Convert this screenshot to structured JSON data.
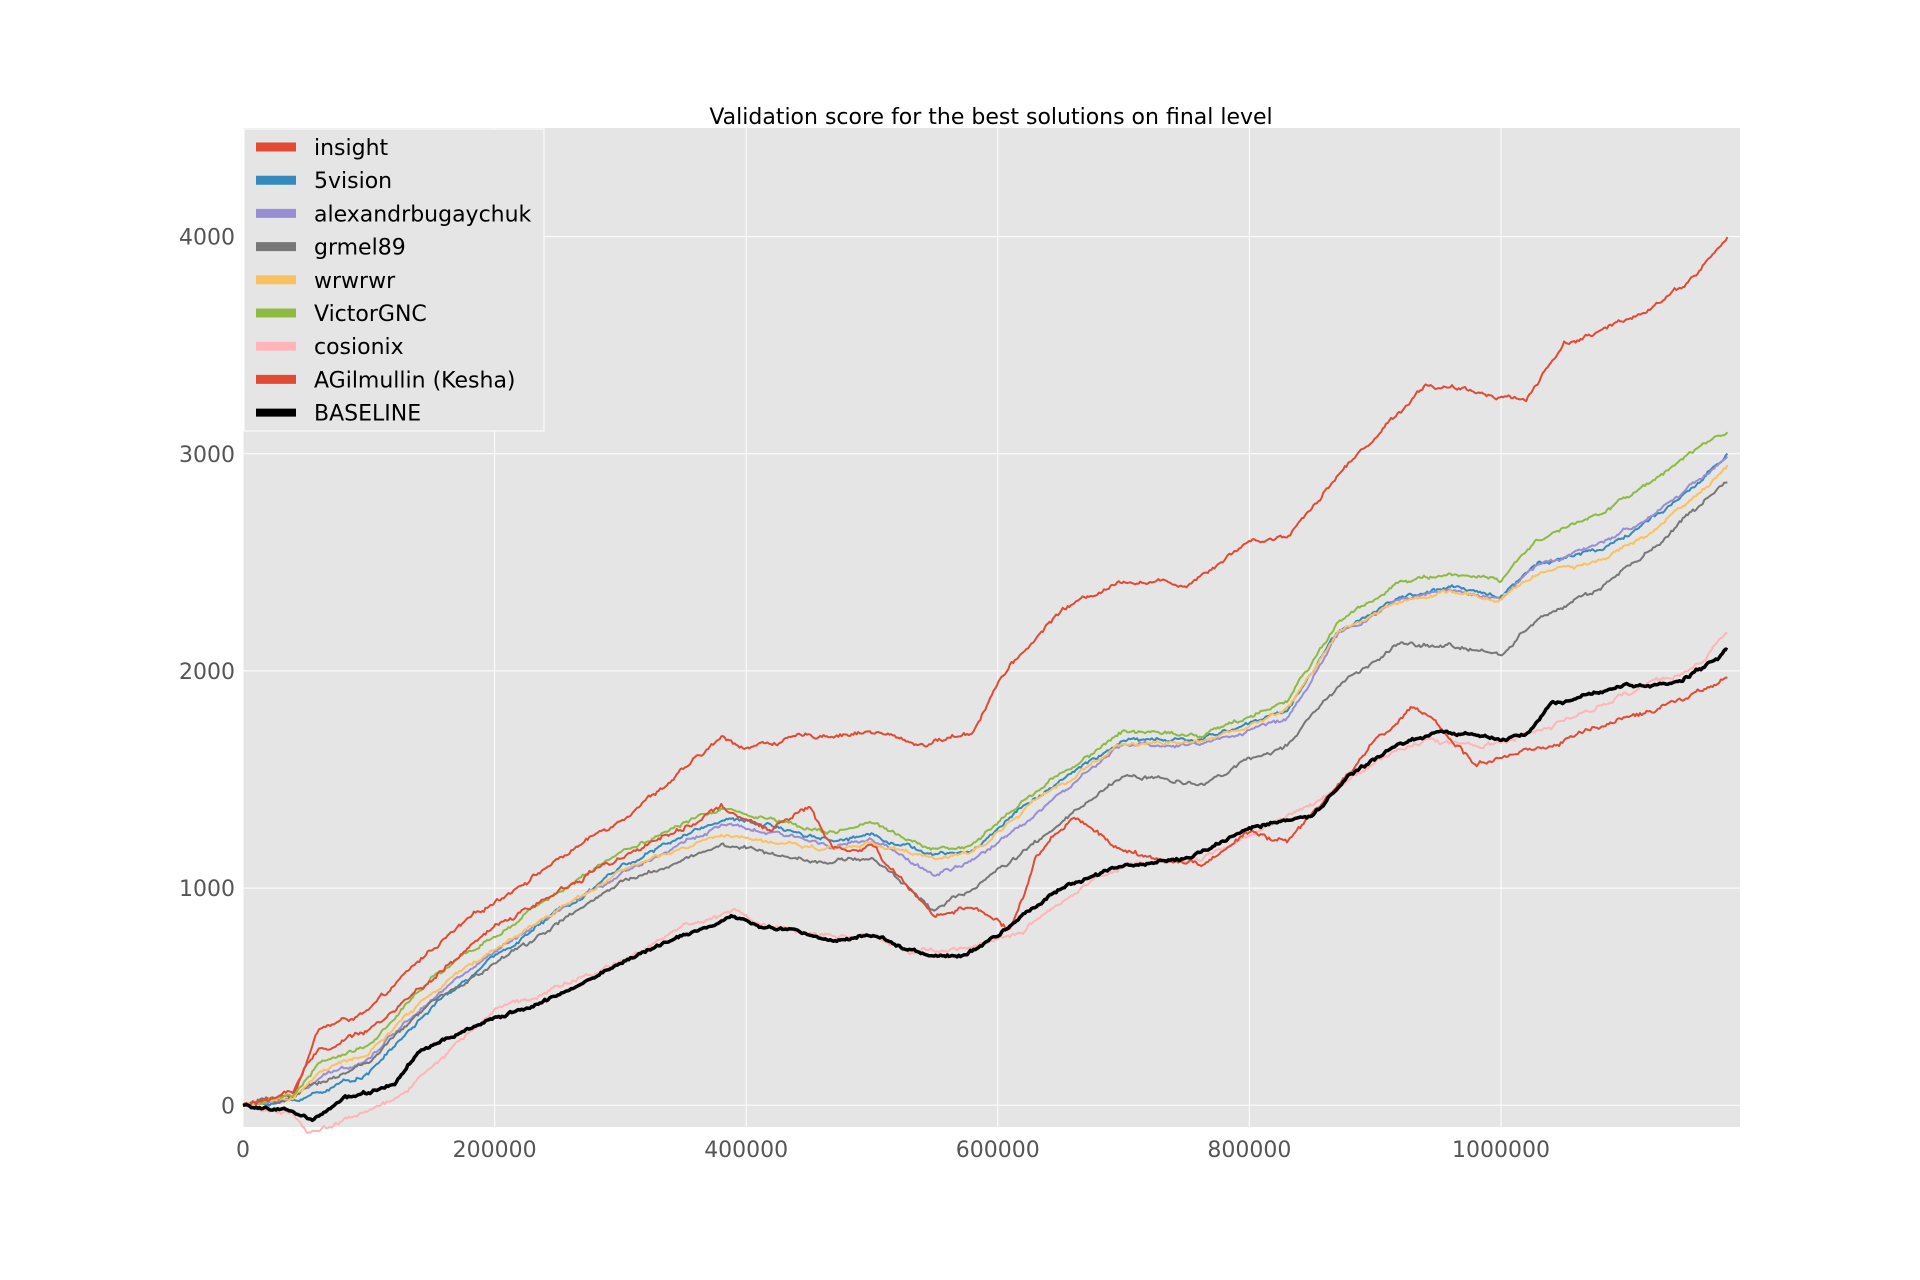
{
  "chart_data": {
    "type": "line",
    "title": "Validation score for the best solutions on final level",
    "xlabel": "",
    "ylabel": "",
    "xlim": [
      0,
      1190000
    ],
    "ylim": [
      -100,
      4500
    ],
    "xticks": [
      0,
      200000,
      400000,
      600000,
      800000,
      1000000
    ],
    "xtick_labels": [
      "0",
      "200000",
      "400000",
      "600000",
      "800000",
      "1000000"
    ],
    "yticks": [
      0,
      1000,
      2000,
      3000,
      4000
    ],
    "ytick_labels": [
      "0",
      "1000",
      "2000",
      "3000",
      "4000"
    ],
    "grid": true,
    "legend_position": "top-left",
    "background": "#e5e5e5",
    "series": [
      {
        "name": "insight",
        "color": "#e24a33",
        "width": 2,
        "noise": 14,
        "x": [
          0,
          40000,
          60000,
          100000,
          150000,
          200000,
          300000,
          350000,
          380000,
          400000,
          450000,
          500000,
          540000,
          580000,
          600000,
          650000,
          700000,
          750000,
          800000,
          830000,
          870000,
          900000,
          940000,
          970000,
          1000000,
          1020000,
          1050000,
          1080000,
          1120000,
          1150000,
          1180000
        ],
        "y": [
          0,
          50,
          350,
          430,
          720,
          940,
          1320,
          1540,
          1690,
          1650,
          1700,
          1720,
          1660,
          1720,
          1950,
          2280,
          2420,
          2400,
          2600,
          2620,
          2900,
          3080,
          3320,
          3290,
          3270,
          3250,
          3510,
          3560,
          3680,
          3800,
          3990
        ]
      },
      {
        "name": "5vision",
        "color": "#348abd",
        "width": 2,
        "noise": 12,
        "x": [
          0,
          40000,
          60000,
          100000,
          150000,
          200000,
          300000,
          380000,
          420000,
          470000,
          500000,
          550000,
          580000,
          620000,
          700000,
          760000,
          800000,
          830000,
          870000,
          920000,
          960000,
          1000000,
          1030000,
          1080000,
          1120000,
          1150000,
          1180000
        ],
        "y": [
          0,
          20,
          60,
          150,
          450,
          680,
          1100,
          1320,
          1290,
          1220,
          1250,
          1150,
          1170,
          1380,
          1680,
          1680,
          1760,
          1820,
          2180,
          2340,
          2380,
          2350,
          2500,
          2560,
          2700,
          2820,
          3000
        ]
      },
      {
        "name": "alexandrbugaychuk",
        "color": "#988ed5",
        "width": 2,
        "noise": 12,
        "x": [
          0,
          40000,
          60000,
          100000,
          150000,
          200000,
          300000,
          380000,
          420000,
          470000,
          500000,
          550000,
          580000,
          620000,
          700000,
          760000,
          800000,
          830000,
          870000,
          920000,
          960000,
          1000000,
          1030000,
          1080000,
          1120000,
          1150000,
          1180000
        ],
        "y": [
          0,
          30,
          120,
          220,
          500,
          700,
          1070,
          1290,
          1250,
          1200,
          1220,
          1060,
          1120,
          1300,
          1660,
          1660,
          1730,
          1780,
          2160,
          2330,
          2370,
          2340,
          2490,
          2580,
          2720,
          2850,
          2990
        ]
      },
      {
        "name": "grmel89",
        "color": "#777777",
        "width": 2,
        "noise": 13,
        "x": [
          0,
          40000,
          60000,
          100000,
          150000,
          200000,
          300000,
          380000,
          420000,
          470000,
          500000,
          550000,
          580000,
          620000,
          700000,
          760000,
          800000,
          830000,
          870000,
          920000,
          960000,
          1000000,
          1030000,
          1080000,
          1120000,
          1150000,
          1180000
        ],
        "y": [
          0,
          30,
          100,
          200,
          470,
          650,
          1020,
          1200,
          1160,
          1120,
          1140,
          900,
          1000,
          1160,
          1520,
          1480,
          1590,
          1650,
          1930,
          2120,
          2110,
          2080,
          2250,
          2380,
          2560,
          2720,
          2870
        ]
      },
      {
        "name": "wrwrwr",
        "color": "#fbc15e",
        "width": 2,
        "noise": 12,
        "x": [
          0,
          40000,
          60000,
          100000,
          150000,
          200000,
          300000,
          380000,
          420000,
          470000,
          500000,
          550000,
          580000,
          620000,
          700000,
          760000,
          800000,
          830000,
          870000,
          920000,
          960000,
          1000000,
          1030000,
          1080000,
          1120000,
          1150000,
          1180000
        ],
        "y": [
          0,
          30,
          150,
          240,
          520,
          720,
          1080,
          1240,
          1210,
          1180,
          1210,
          1130,
          1160,
          1360,
          1670,
          1670,
          1750,
          1820,
          2180,
          2320,
          2360,
          2330,
          2450,
          2510,
          2640,
          2780,
          2950
        ]
      },
      {
        "name": "VictorGNC",
        "color": "#8eba42",
        "width": 2,
        "noise": 12,
        "x": [
          0,
          40000,
          60000,
          100000,
          150000,
          200000,
          300000,
          380000,
          420000,
          470000,
          500000,
          550000,
          580000,
          620000,
          700000,
          760000,
          800000,
          830000,
          870000,
          920000,
          960000,
          1000000,
          1030000,
          1080000,
          1120000,
          1150000,
          1180000
        ],
        "y": [
          0,
          40,
          190,
          280,
          580,
          780,
          1170,
          1370,
          1320,
          1260,
          1290,
          1180,
          1190,
          1410,
          1720,
          1710,
          1790,
          1860,
          2220,
          2420,
          2450,
          2420,
          2600,
          2720,
          2870,
          2990,
          3110
        ]
      },
      {
        "name": "cosionix",
        "color": "#ffb5b8",
        "width": 2,
        "noise": 14,
        "x": [
          0,
          40000,
          50000,
          80000,
          120000,
          200000,
          300000,
          350000,
          390000,
          420000,
          470000,
          500000,
          530000,
          580000,
          620000,
          680000,
          700000,
          760000,
          800000,
          860000,
          900000,
          940000,
          980000,
          1000000,
          1040000,
          1100000,
          1150000,
          1180000
        ],
        "y": [
          0,
          -40,
          -130,
          -70,
          20,
          440,
          660,
          840,
          890,
          820,
          780,
          770,
          700,
          720,
          800,
          1050,
          1100,
          1130,
          1250,
          1430,
          1580,
          1680,
          1650,
          1670,
          1740,
          1900,
          2000,
          2180
        ]
      },
      {
        "name": "AGilmullin (Kesha)",
        "color": "#e24a33",
        "width": 2,
        "noise": 16,
        "x": [
          0,
          40000,
          60000,
          100000,
          150000,
          200000,
          300000,
          380000,
          420000,
          450000,
          470000,
          500000,
          550000,
          580000,
          610000,
          630000,
          660000,
          700000,
          760000,
          800000,
          830000,
          870000,
          900000,
          930000,
          960000,
          980000,
          1000000,
          1040000,
          1100000,
          1150000,
          1180000
        ],
        "y": [
          0,
          60,
          260,
          340,
          580,
          820,
          1150,
          1360,
          1270,
          1380,
          1180,
          1200,
          860,
          930,
          800,
          1140,
          1330,
          1170,
          1090,
          1260,
          1220,
          1470,
          1680,
          1830,
          1690,
          1570,
          1600,
          1660,
          1790,
          1870,
          1980
        ]
      },
      {
        "name": "BASELINE",
        "color": "#000000",
        "width": 3.5,
        "noise": 10,
        "x": [
          0,
          40000,
          55000,
          80000,
          100000,
          120000,
          140000,
          200000,
          250000,
          300000,
          350000,
          390000,
          420000,
          470000,
          500000,
          530000,
          570000,
          600000,
          650000,
          700000,
          750000,
          800000,
          850000,
          880000,
          920000,
          950000,
          1000000,
          1020000,
          1040000,
          1100000,
          1140000,
          1170000,
          1180000
        ],
        "y": [
          0,
          -30,
          -80,
          30,
          60,
          90,
          250,
          400,
          500,
          650,
          790,
          870,
          820,
          760,
          790,
          710,
          690,
          780,
          1000,
          1100,
          1140,
          1280,
          1330,
          1520,
          1670,
          1720,
          1680,
          1710,
          1840,
          1930,
          1950,
          2050,
          2100
        ]
      }
    ]
  }
}
